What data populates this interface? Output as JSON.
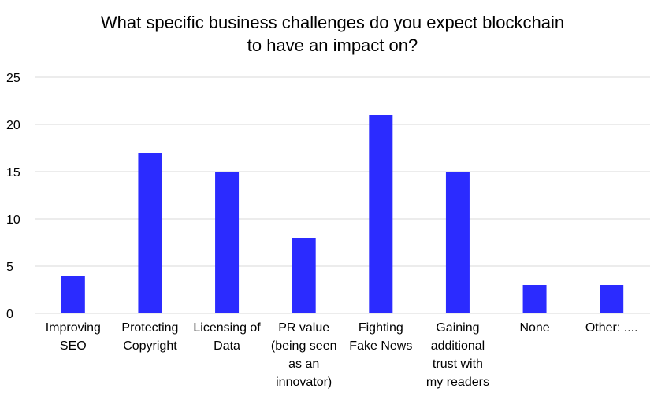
{
  "chart_data": {
    "type": "bar",
    "title_lines": [
      "What specific business challenges do you expect blockchain",
      "to have an impact on?"
    ],
    "categories": [
      [
        "Improving",
        "SEO"
      ],
      [
        "Protecting",
        "Copyright"
      ],
      [
        "Licensing of",
        "Data"
      ],
      [
        "PR value",
        "(being seen",
        "as an",
        "innovator)"
      ],
      [
        "Fighting",
        "Fake News"
      ],
      [
        "Gaining",
        "additional",
        "trust with",
        "my readers"
      ],
      [
        "None"
      ],
      [
        "Other: ...."
      ]
    ],
    "values": [
      4,
      17,
      15,
      8,
      21,
      15,
      3,
      3
    ],
    "ylim": [
      0,
      25
    ],
    "yticks": [
      0,
      5,
      10,
      15,
      20,
      25
    ],
    "grid": true,
    "legend": "none",
    "bar_color": "#2b2bff",
    "grid_color": "#d9d9d9"
  }
}
